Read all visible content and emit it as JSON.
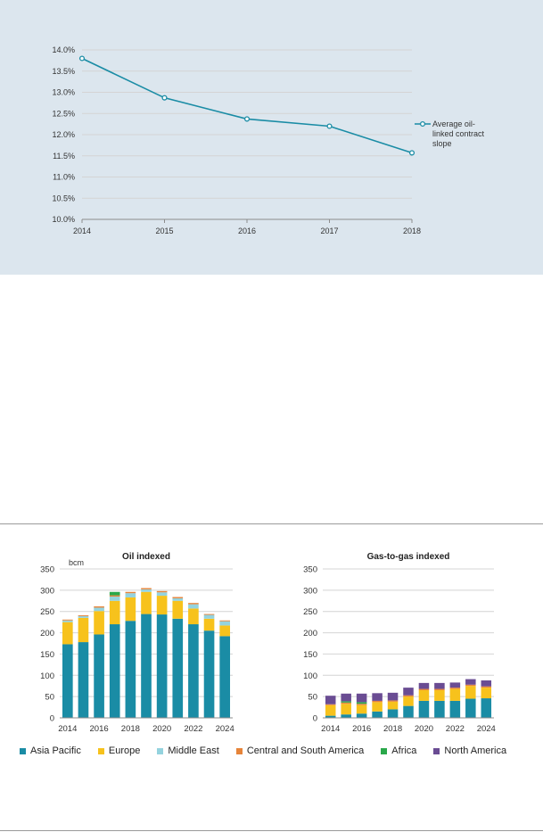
{
  "chart_data": [
    {
      "type": "line",
      "x": [
        "2014",
        "2015",
        "2016",
        "2017",
        "2018"
      ],
      "series": [
        {
          "name": "Average oil-linked contract slope",
          "values": [
            13.8,
            12.87,
            12.37,
            12.2,
            11.57
          ],
          "color": "#1a8ca5"
        }
      ],
      "ylim": [
        10.0,
        14.0
      ],
      "yticks": [
        "10.0%",
        "10.5%",
        "11.0%",
        "11.5%",
        "12.0%",
        "12.5%",
        "13.0%",
        "13.5%",
        "14.0%"
      ],
      "legend_lines": [
        "Average oil-",
        "linked contract",
        "slope"
      ],
      "legend_position": "right",
      "grid": true
    },
    {
      "type": "bar",
      "stacked": true,
      "title": "Oil indexed",
      "ylabel": "bcm",
      "ylim": [
        0,
        350
      ],
      "yticks": [
        "0",
        "50",
        "100",
        "150",
        "200",
        "250",
        "300",
        "350"
      ],
      "categories": [
        "2014",
        "2015",
        "2016",
        "2017",
        "2018",
        "2019",
        "2020",
        "2021",
        "2022",
        "2023",
        "2024"
      ],
      "xtick_labels": [
        "2014",
        "2016",
        "2018",
        "2020",
        "2022",
        "2024"
      ],
      "series": [
        {
          "name": "Asia Pacific",
          "values": [
            173,
            178,
            196,
            220,
            228,
            244,
            243,
            233,
            220,
            205,
            192
          ]
        },
        {
          "name": "Europe",
          "values": [
            52,
            57,
            55,
            55,
            55,
            52,
            44,
            42,
            37,
            28,
            25
          ]
        },
        {
          "name": "Middle East",
          "values": [
            4,
            4,
            8,
            10,
            10,
            6,
            8,
            6,
            10,
            9,
            10
          ]
        },
        {
          "name": "Central and South America",
          "values": [
            2,
            2,
            3,
            3,
            3,
            3,
            3,
            3,
            3,
            2,
            2
          ]
        },
        {
          "name": "Africa",
          "values": [
            0,
            0,
            0,
            8,
            0,
            0,
            0,
            0,
            0,
            0,
            0
          ]
        },
        {
          "name": "North America",
          "values": [
            0,
            0,
            0,
            0,
            0,
            0,
            0,
            0,
            0,
            0,
            0
          ]
        }
      ]
    },
    {
      "type": "bar",
      "stacked": true,
      "title": "Gas-to-gas indexed",
      "ylim": [
        0,
        350
      ],
      "yticks": [
        "0",
        "50",
        "100",
        "150",
        "200",
        "250",
        "300",
        "350"
      ],
      "categories": [
        "2014",
        "2015",
        "2016",
        "2017",
        "2018",
        "2019",
        "2020",
        "2021",
        "2022",
        "2023",
        "2024"
      ],
      "xtick_labels": [
        "2014",
        "2016",
        "2018",
        "2020",
        "2022",
        "2024"
      ],
      "series": [
        {
          "name": "Asia Pacific",
          "values": [
            5,
            8,
            10,
            15,
            20,
            28,
            40,
            40,
            40,
            45,
            46
          ]
        },
        {
          "name": "Europe",
          "values": [
            25,
            25,
            20,
            22,
            18,
            22,
            25,
            25,
            28,
            30,
            25
          ]
        },
        {
          "name": "Middle East",
          "values": [
            0,
            0,
            0,
            0,
            0,
            0,
            0,
            0,
            0,
            0,
            0
          ]
        },
        {
          "name": "Central and South America",
          "values": [
            2,
            3,
            3,
            3,
            3,
            3,
            3,
            3,
            3,
            3,
            3
          ]
        },
        {
          "name": "Africa",
          "values": [
            0,
            3,
            4,
            0,
            0,
            0,
            0,
            0,
            0,
            0,
            0
          ]
        },
        {
          "name": "North America",
          "values": [
            20,
            18,
            20,
            18,
            18,
            18,
            14,
            14,
            12,
            13,
            14
          ]
        }
      ]
    }
  ],
  "legend_bottom": [
    {
      "name": "Asia Pacific",
      "color": "#1a8ca5"
    },
    {
      "name": "Europe",
      "color": "#f7c21c"
    },
    {
      "name": "Middle East",
      "color": "#94d3de"
    },
    {
      "name": "Central and South America",
      "color": "#e6843a"
    },
    {
      "name": "Africa",
      "color": "#2aa84a"
    },
    {
      "name": "North America",
      "color": "#6a4c93"
    }
  ],
  "colors": {
    "line": "#1a8ca5",
    "panel_background": "#dce6ee",
    "grid": "#d4d4d4",
    "axis": "#8c8c8c"
  }
}
